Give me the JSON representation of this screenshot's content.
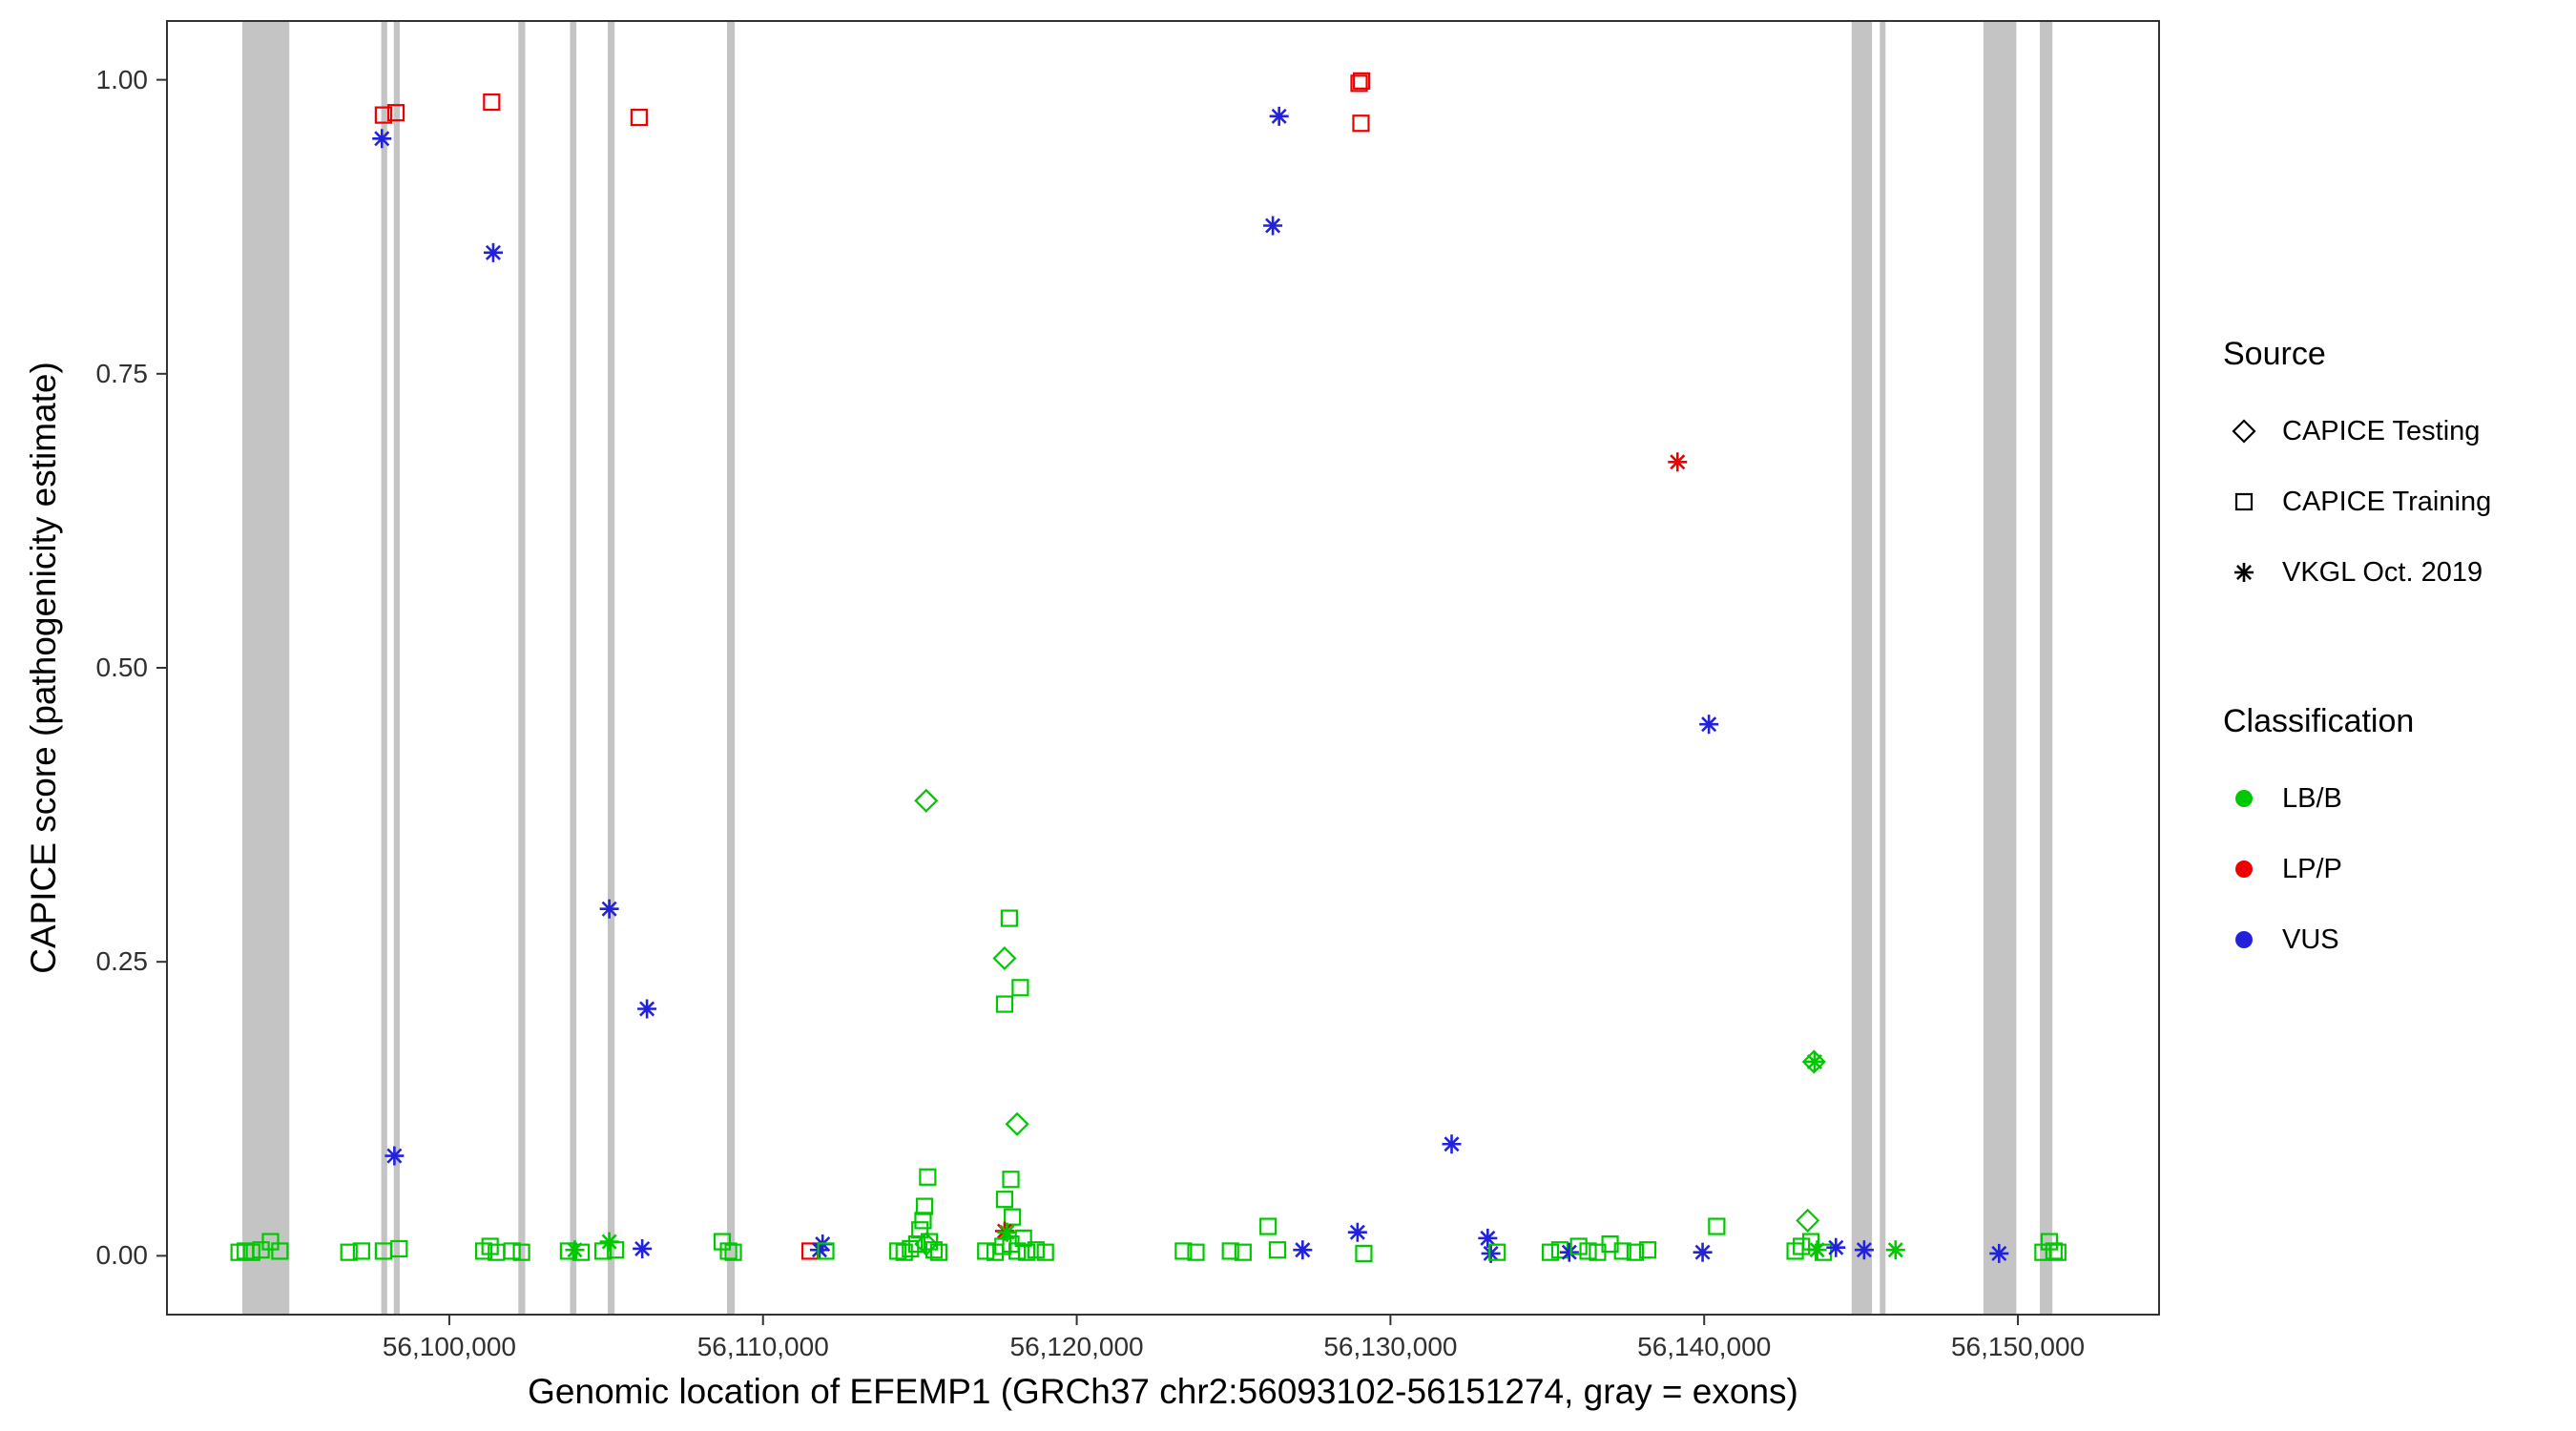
{
  "chart_data": {
    "type": "scatter",
    "title": "",
    "xlabel": "Genomic location of EFEMP1 (GRCh37 chr2:56093102-56151274, gray = exons)",
    "ylabel": "CAPICE score (pathogenicity estimate)",
    "xlim": [
      56091000,
      56154500
    ],
    "ylim": [
      -0.05,
      1.05
    ],
    "grid": false,
    "legend_position": "right",
    "xticks": [
      {
        "value": 56100000,
        "label": "56,100,000"
      },
      {
        "value": 56110000,
        "label": "56,110,000"
      },
      {
        "value": 56120000,
        "label": "56,120,000"
      },
      {
        "value": 56130000,
        "label": "56,130,000"
      },
      {
        "value": 56140000,
        "label": "56,140,000"
      },
      {
        "value": 56150000,
        "label": "56,150,000"
      }
    ],
    "yticks": [
      {
        "value": 0.0,
        "label": "0.00"
      },
      {
        "value": 0.25,
        "label": "0.25"
      },
      {
        "value": 0.5,
        "label": "0.50"
      },
      {
        "value": 0.75,
        "label": "0.75"
      },
      {
        "value": 1.0,
        "label": "1.00"
      }
    ],
    "colors": {
      "LB/B": "#00c800",
      "LP/P": "#ee0000",
      "VUS": "#2222dd",
      "exon": "#c4c4c4",
      "panel_border": "#333333",
      "tick": "#333333"
    },
    "exons": [
      [
        56093400,
        56094900
      ],
      [
        56097830,
        56098020
      ],
      [
        56098230,
        56098420
      ],
      [
        56102200,
        56102420
      ],
      [
        56103850,
        56104050
      ],
      [
        56105050,
        56105270
      ],
      [
        56108850,
        56109100
      ],
      [
        56144700,
        56145350
      ],
      [
        56145600,
        56145780
      ],
      [
        56148900,
        56149950
      ],
      [
        56150700,
        56151100
      ]
    ],
    "legend": {
      "source": {
        "title": "Source",
        "items": [
          {
            "key": "testing",
            "label": "CAPICE Testing",
            "shape": "diamond"
          },
          {
            "key": "training",
            "label": "CAPICE Training",
            "shape": "square"
          },
          {
            "key": "vkgl",
            "label": "VKGL Oct. 2019",
            "shape": "asterisk"
          }
        ]
      },
      "classification": {
        "title": "Classification",
        "items": [
          {
            "key": "LB/B",
            "label": "LB/B",
            "color": "#00c800"
          },
          {
            "key": "LP/P",
            "label": "LP/P",
            "color": "#ee0000"
          },
          {
            "key": "VUS",
            "label": "VUS",
            "color": "#2222dd"
          }
        ]
      }
    },
    "points_format": [
      "genomic_position",
      "capice_score",
      "source",
      "classification"
    ],
    "points": [
      [
        56097900,
        0.97,
        "training",
        "LP/P"
      ],
      [
        56098300,
        0.972,
        "training",
        "LP/P"
      ],
      [
        56097850,
        0.95,
        "vkgl",
        "VUS"
      ],
      [
        56101350,
        0.981,
        "training",
        "LP/P"
      ],
      [
        56106050,
        0.968,
        "training",
        "LP/P"
      ],
      [
        56101400,
        0.853,
        "vkgl",
        "VUS"
      ],
      [
        56126450,
        0.969,
        "vkgl",
        "VUS"
      ],
      [
        56129000,
        0.997,
        "training",
        "LP/P"
      ],
      [
        56129080,
        0.999,
        "training",
        "LP/P"
      ],
      [
        56129060,
        0.963,
        "training",
        "LP/P"
      ],
      [
        56126250,
        0.876,
        "vkgl",
        "VUS"
      ],
      [
        56139150,
        0.675,
        "vkgl",
        "LP/P"
      ],
      [
        56140150,
        0.452,
        "vkgl",
        "VUS"
      ],
      [
        56105100,
        0.295,
        "vkgl",
        "VUS"
      ],
      [
        56106300,
        0.21,
        "vkgl",
        "VUS"
      ],
      [
        56098250,
        0.085,
        "vkgl",
        "VUS"
      ],
      [
        56115200,
        0.387,
        "testing",
        "LB/B"
      ],
      [
        56117700,
        0.253,
        "testing",
        "LB/B"
      ],
      [
        56117850,
        0.287,
        "training",
        "LB/B"
      ],
      [
        56118200,
        0.228,
        "training",
        "LB/B"
      ],
      [
        56117700,
        0.214,
        "training",
        "LB/B"
      ],
      [
        56118100,
        0.112,
        "testing",
        "LB/B"
      ],
      [
        56131950,
        0.095,
        "vkgl",
        "VUS"
      ],
      [
        56143500,
        0.165,
        "testing",
        "LB/B"
      ],
      [
        56143520,
        0.165,
        "vkgl",
        "LB/B"
      ],
      [
        56117900,
        0.065,
        "training",
        "LB/B"
      ],
      [
        56117700,
        0.048,
        "training",
        "LB/B"
      ],
      [
        56117950,
        0.033,
        "training",
        "LB/B"
      ],
      [
        56117700,
        0.021,
        "vkgl",
        "LP/P"
      ],
      [
        56117780,
        0.02,
        "vkgl",
        "LB/B"
      ],
      [
        56117100,
        0.004,
        "training",
        "LB/B"
      ],
      [
        56117400,
        0.003,
        "training",
        "LB/B"
      ],
      [
        56117650,
        0.008,
        "training",
        "LB/B"
      ],
      [
        56117900,
        0.01,
        "training",
        "LB/B"
      ],
      [
        56118100,
        0.004,
        "training",
        "LB/B"
      ],
      [
        56118400,
        0.003,
        "training",
        "LB/B"
      ],
      [
        56118700,
        0.005,
        "training",
        "LB/B"
      ],
      [
        56119000,
        0.003,
        "training",
        "LB/B"
      ],
      [
        56118300,
        0.015,
        "training",
        "LB/B"
      ],
      [
        56114300,
        0.004,
        "training",
        "LB/B"
      ],
      [
        56114500,
        0.003,
        "training",
        "LB/B"
      ],
      [
        56114700,
        0.006,
        "training",
        "LB/B"
      ],
      [
        56114900,
        0.01,
        "training",
        "LB/B"
      ],
      [
        56115000,
        0.022,
        "training",
        "LB/B"
      ],
      [
        56115100,
        0.03,
        "training",
        "LB/B"
      ],
      [
        56115150,
        0.042,
        "training",
        "LB/B"
      ],
      [
        56115250,
        0.067,
        "training",
        "LB/B"
      ],
      [
        56115300,
        0.012,
        "training",
        "LB/B"
      ],
      [
        56115450,
        0.005,
        "training",
        "LB/B"
      ],
      [
        56115600,
        0.003,
        "training",
        "LB/B"
      ],
      [
        56115200,
        0.01,
        "testing",
        "LB/B"
      ],
      [
        56093300,
        0.003,
        "training",
        "LB/B"
      ],
      [
        56093500,
        0.004,
        "training",
        "LB/B"
      ],
      [
        56093700,
        0.003,
        "training",
        "LB/B"
      ],
      [
        56094000,
        0.005,
        "training",
        "LB/B"
      ],
      [
        56094300,
        0.012,
        "training",
        "LB/B"
      ],
      [
        56094600,
        0.004,
        "training",
        "LB/B"
      ],
      [
        56096800,
        0.003,
        "training",
        "LB/B"
      ],
      [
        56097200,
        0.004,
        "training",
        "LB/B"
      ],
      [
        56097900,
        0.004,
        "training",
        "LB/B"
      ],
      [
        56098400,
        0.006,
        "training",
        "LB/B"
      ],
      [
        56101100,
        0.004,
        "training",
        "LB/B"
      ],
      [
        56101300,
        0.008,
        "training",
        "LB/B"
      ],
      [
        56101500,
        0.003,
        "training",
        "LB/B"
      ],
      [
        56102000,
        0.004,
        "training",
        "LB/B"
      ],
      [
        56102300,
        0.003,
        "training",
        "LB/B"
      ],
      [
        56103800,
        0.004,
        "training",
        "LB/B"
      ],
      [
        56104000,
        0.005,
        "vkgl",
        "LB/B"
      ],
      [
        56104200,
        0.003,
        "training",
        "LB/B"
      ],
      [
        56104900,
        0.004,
        "training",
        "LB/B"
      ],
      [
        56105100,
        0.012,
        "vkgl",
        "LB/B"
      ],
      [
        56105300,
        0.005,
        "training",
        "LB/B"
      ],
      [
        56106150,
        0.006,
        "vkgl",
        "VUS"
      ],
      [
        56108700,
        0.012,
        "training",
        "LB/B"
      ],
      [
        56108900,
        0.004,
        "training",
        "LB/B"
      ],
      [
        56109050,
        0.003,
        "training",
        "LB/B"
      ],
      [
        56111500,
        0.004,
        "training",
        "LP/P"
      ],
      [
        56111800,
        0.005,
        "vkgl",
        "VUS"
      ],
      [
        56111900,
        0.01,
        "vkgl",
        "VUS"
      ],
      [
        56112000,
        0.004,
        "training",
        "LB/B"
      ],
      [
        56123400,
        0.004,
        "training",
        "LB/B"
      ],
      [
        56123800,
        0.003,
        "training",
        "LB/B"
      ],
      [
        56124900,
        0.004,
        "training",
        "LB/B"
      ],
      [
        56125300,
        0.003,
        "training",
        "LB/B"
      ],
      [
        56126100,
        0.025,
        "training",
        "LB/B"
      ],
      [
        56126400,
        0.005,
        "training",
        "LB/B"
      ],
      [
        56127200,
        0.005,
        "vkgl",
        "VUS"
      ],
      [
        56128950,
        0.02,
        "vkgl",
        "VUS"
      ],
      [
        56129150,
        0.002,
        "training",
        "LB/B"
      ],
      [
        56133100,
        0.015,
        "vkgl",
        "VUS"
      ],
      [
        56133200,
        0.002,
        "vkgl",
        "VUS"
      ],
      [
        56133400,
        0.003,
        "training",
        "LB/B"
      ],
      [
        56135100,
        0.003,
        "training",
        "LB/B"
      ],
      [
        56135400,
        0.005,
        "training",
        "LB/B"
      ],
      [
        56135700,
        0.003,
        "vkgl",
        "VUS"
      ],
      [
        56136000,
        0.008,
        "training",
        "LB/B"
      ],
      [
        56136300,
        0.004,
        "training",
        "LB/B"
      ],
      [
        56136600,
        0.003,
        "training",
        "LB/B"
      ],
      [
        56137000,
        0.01,
        "training",
        "LB/B"
      ],
      [
        56137400,
        0.004,
        "training",
        "LB/B"
      ],
      [
        56137800,
        0.003,
        "training",
        "LB/B"
      ],
      [
        56138200,
        0.005,
        "training",
        "LB/B"
      ],
      [
        56139950,
        0.003,
        "vkgl",
        "VUS"
      ],
      [
        56140400,
        0.025,
        "training",
        "LB/B"
      ],
      [
        56142900,
        0.004,
        "training",
        "LB/B"
      ],
      [
        56143100,
        0.008,
        "training",
        "LB/B"
      ],
      [
        56143300,
        0.03,
        "testing",
        "LB/B"
      ],
      [
        56143400,
        0.012,
        "training",
        "LB/B"
      ],
      [
        56143600,
        0.005,
        "vkgl",
        "LB/B"
      ],
      [
        56143800,
        0.003,
        "training",
        "LB/B"
      ],
      [
        56144200,
        0.007,
        "vkgl",
        "VUS"
      ],
      [
        56145100,
        0.005,
        "vkgl",
        "VUS"
      ],
      [
        56146100,
        0.005,
        "vkgl",
        "LB/B"
      ],
      [
        56149400,
        0.002,
        "vkgl",
        "VUS"
      ],
      [
        56150800,
        0.003,
        "training",
        "LB/B"
      ],
      [
        56151000,
        0.012,
        "training",
        "LB/B"
      ],
      [
        56151150,
        0.004,
        "training",
        "LB/B"
      ],
      [
        56151270,
        0.003,
        "training",
        "LB/B"
      ]
    ]
  }
}
